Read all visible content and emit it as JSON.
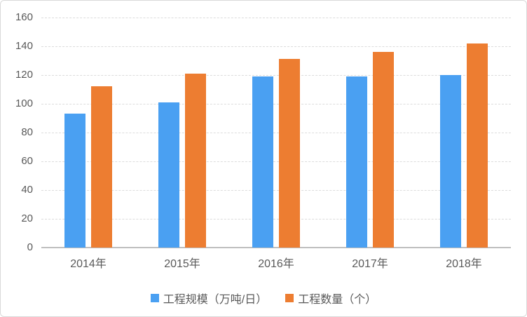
{
  "chart_data": {
    "type": "bar",
    "title": "",
    "xlabel": "",
    "ylabel": "",
    "categories": [
      "2014年",
      "2015年",
      "2016年",
      "2017年",
      "2018年"
    ],
    "series": [
      {
        "name": "工程规模（万吨/日）",
        "color": "#4AA0F2",
        "values": [
          93,
          101,
          119,
          119,
          120
        ]
      },
      {
        "name": "工程数量（个）",
        "color": "#ED7D31",
        "values": [
          112,
          121,
          131,
          136,
          142
        ]
      }
    ],
    "ylim": [
      0,
      160
    ],
    "yticks": [
      0,
      20,
      40,
      60,
      80,
      100,
      120,
      140,
      160
    ],
    "grid": true,
    "legend_position": "bottom"
  },
  "style": {
    "gridline_color": "#DCDCDC",
    "axis_line_color": "#BFBFBF",
    "tick_label_color": "#595959",
    "background_color": "#FFFFFF",
    "border_color": "#D9D9D9"
  }
}
